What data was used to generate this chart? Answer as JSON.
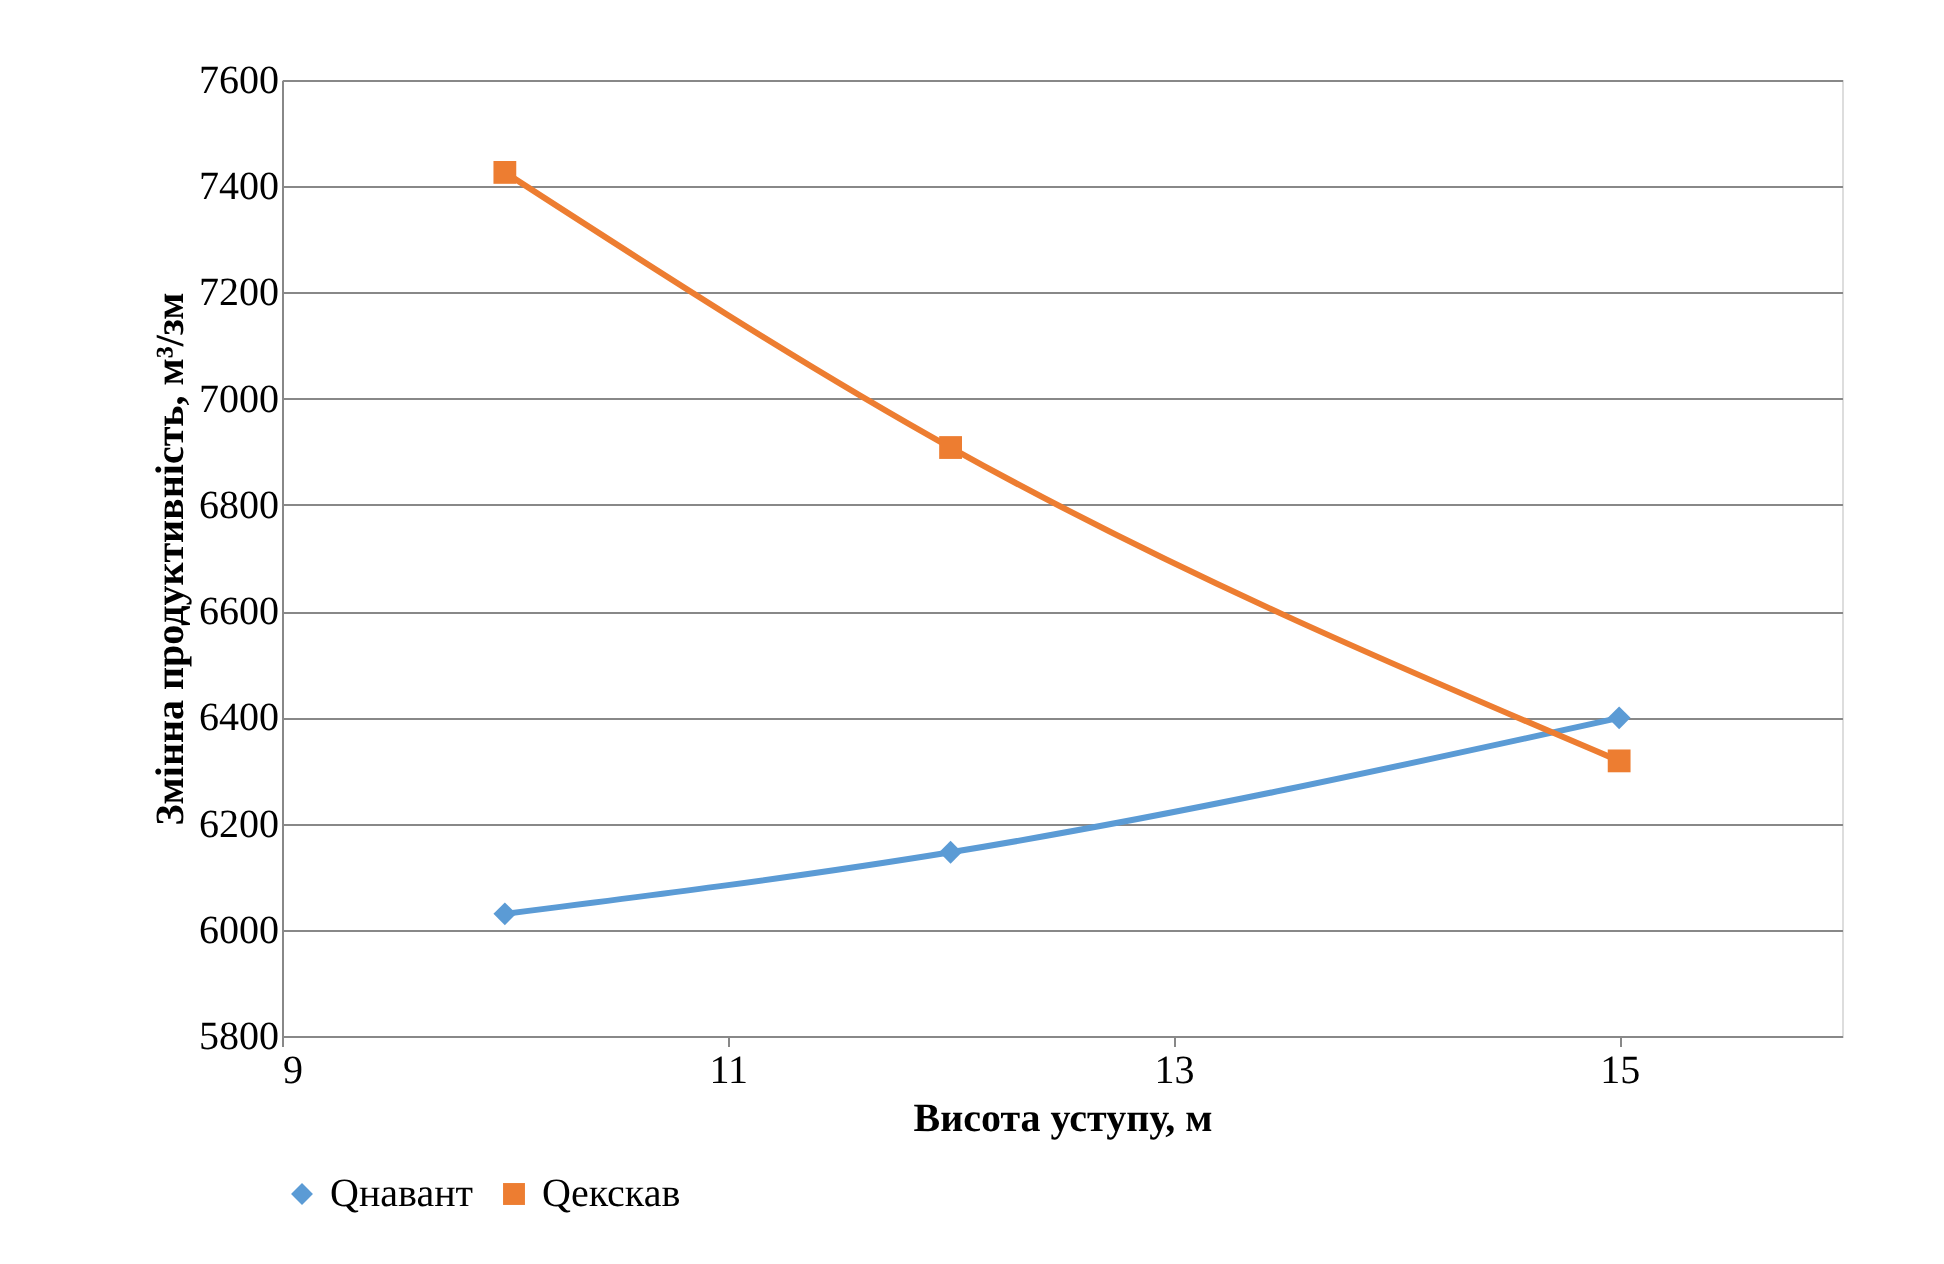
{
  "chart_data": {
    "type": "line",
    "xlabel": "Висота уступу, м",
    "ylabel": "Змінна продуктивність, м³/зм",
    "x": [
      10,
      12,
      15
    ],
    "series": [
      {
        "name": "Qнавант",
        "color": "#5b9bd5",
        "marker": "diamond",
        "values": [
          6030,
          6146,
          6399
        ]
      },
      {
        "name": "Qекскав",
        "color": "#ed7d31",
        "marker": "square",
        "values": [
          7426,
          6908,
          6318
        ]
      }
    ],
    "xlim": [
      9,
      16
    ],
    "xticks": [
      9,
      11,
      13,
      15
    ],
    "ylim": [
      5800,
      7600
    ],
    "yticks": [
      5800,
      6000,
      6200,
      6400,
      6600,
      6800,
      7000,
      7200,
      7400,
      7600
    ],
    "grid": "y",
    "legend": "bottom",
    "line_style": "solid"
  }
}
